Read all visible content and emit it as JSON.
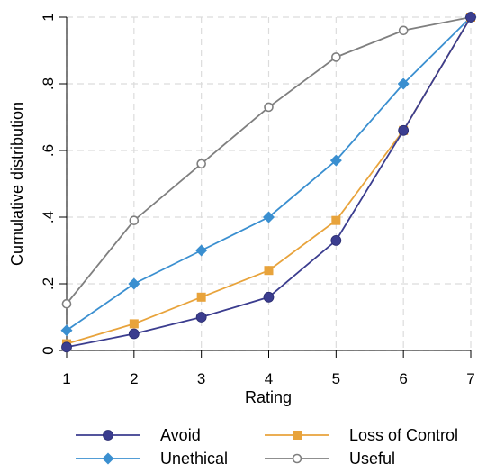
{
  "chart_data": {
    "type": "line",
    "title": "",
    "xlabel": "Rating",
    "ylabel": "Cumulative distribution",
    "x": [
      1,
      2,
      3,
      4,
      5,
      6,
      7
    ],
    "xlim": [
      1,
      7
    ],
    "ylim": [
      0,
      1
    ],
    "x_ticks": [
      "1",
      "2",
      "3",
      "4",
      "5",
      "6",
      "7"
    ],
    "y_ticks": [
      "0",
      ".2",
      ".4",
      ".6",
      ".8",
      "1"
    ],
    "grid": true,
    "legend_position": "bottom",
    "series": [
      {
        "name": "Avoid",
        "color": "#3b3d8f",
        "marker": "circle",
        "values": [
          0.01,
          0.05,
          0.1,
          0.16,
          0.33,
          0.66,
          1.0
        ]
      },
      {
        "name": "Loss of Control",
        "color": "#e8a33b",
        "marker": "square",
        "values": [
          0.02,
          0.08,
          0.16,
          0.24,
          0.39,
          0.66,
          1.0
        ]
      },
      {
        "name": "Unethical",
        "color": "#3a8fd0",
        "marker": "diamond",
        "values": [
          0.06,
          0.2,
          0.3,
          0.4,
          0.57,
          0.8,
          1.0
        ]
      },
      {
        "name": "Useful",
        "color": "#7f7f7f",
        "marker": "hollow-circle",
        "values": [
          0.14,
          0.39,
          0.56,
          0.73,
          0.88,
          0.96,
          1.0
        ]
      }
    ]
  }
}
